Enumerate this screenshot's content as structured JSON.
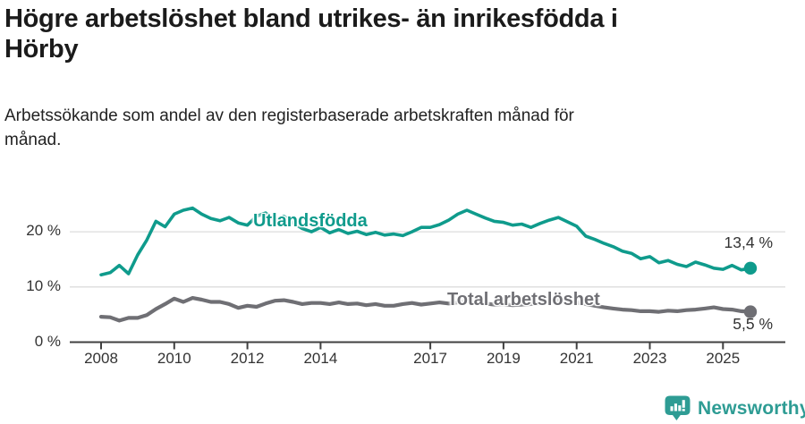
{
  "header": {
    "title": "Högre arbetslöshet bland utrikes- än inrikesfödda i\nHörby",
    "subtitle": "Arbetssökande som andel av den registerbaserade arbetskraften månad för\nmånad."
  },
  "chart_data": {
    "type": "line",
    "title": "Högre arbetslöshet bland utrikes- än inrikesfödda i Hörby",
    "subtitle": "Arbetssökande som andel av den registerbaserade arbetskraften månad för månad.",
    "x_unit": "decimal_year",
    "x": [
      2008.0,
      2008.25,
      2008.5,
      2008.75,
      2009.0,
      2009.25,
      2009.5,
      2009.75,
      2010.0,
      2010.25,
      2010.5,
      2010.75,
      2011.0,
      2011.25,
      2011.5,
      2011.75,
      2012.0,
      2012.25,
      2012.5,
      2012.75,
      2013.0,
      2013.25,
      2013.5,
      2013.75,
      2014.0,
      2014.25,
      2014.5,
      2014.75,
      2015.0,
      2015.25,
      2015.5,
      2015.75,
      2016.0,
      2016.25,
      2016.5,
      2016.75,
      2017.0,
      2017.25,
      2017.5,
      2017.75,
      2018.0,
      2018.25,
      2018.5,
      2018.75,
      2019.0,
      2019.25,
      2019.5,
      2019.75,
      2020.0,
      2020.25,
      2020.5,
      2020.75,
      2021.0,
      2021.25,
      2021.5,
      2021.75,
      2022.0,
      2022.25,
      2022.5,
      2022.75,
      2023.0,
      2023.25,
      2023.5,
      2023.75,
      2024.0,
      2024.25,
      2024.5,
      2024.75,
      2025.0,
      2025.25,
      2025.5,
      2025.75
    ],
    "series": [
      {
        "name": "Utlandsfödda",
        "color": "#0f9b8c",
        "end_label": "13,4 %",
        "end_value": 13.4,
        "values": [
          12.2,
          12.6,
          13.9,
          12.4,
          15.8,
          18.5,
          21.9,
          20.9,
          23.2,
          23.9,
          24.3,
          23.2,
          22.4,
          22.0,
          22.6,
          21.6,
          21.2,
          22.8,
          23.4,
          22.0,
          22.8,
          21.6,
          20.6,
          20.0,
          20.8,
          19.8,
          20.4,
          19.7,
          20.1,
          19.5,
          19.9,
          19.4,
          19.6,
          19.3,
          20.0,
          20.8,
          20.8,
          21.3,
          22.1,
          23.2,
          23.9,
          23.2,
          22.5,
          21.9,
          21.7,
          21.2,
          21.4,
          20.8,
          21.5,
          22.1,
          22.6,
          21.8,
          21.0,
          19.2,
          18.6,
          17.9,
          17.3,
          16.5,
          16.1,
          15.1,
          15.5,
          14.4,
          14.8,
          14.1,
          13.7,
          14.5,
          14.0,
          13.4,
          13.2,
          13.9,
          13.1,
          13.4
        ]
      },
      {
        "name": "Total arbetslöshet",
        "color": "#6f6f74",
        "end_label": "5,5 %",
        "end_value": 5.5,
        "values": [
          4.6,
          4.5,
          3.9,
          4.4,
          4.4,
          4.9,
          6.0,
          6.9,
          7.9,
          7.3,
          8.0,
          7.7,
          7.3,
          7.3,
          6.9,
          6.2,
          6.6,
          6.4,
          7.0,
          7.5,
          7.6,
          7.3,
          6.9,
          7.1,
          7.1,
          6.9,
          7.2,
          6.9,
          7.0,
          6.7,
          6.9,
          6.6,
          6.6,
          6.9,
          7.1,
          6.8,
          7.0,
          7.2,
          7.0,
          7.2,
          7.4,
          7.2,
          7.0,
          6.8,
          6.9,
          6.7,
          6.8,
          6.9,
          7.0,
          7.4,
          7.6,
          7.4,
          7.2,
          6.9,
          6.6,
          6.3,
          6.1,
          5.9,
          5.8,
          5.6,
          5.6,
          5.5,
          5.7,
          5.6,
          5.8,
          5.9,
          6.1,
          6.3,
          6.0,
          5.9,
          5.6,
          5.5
        ]
      }
    ],
    "x_ticks": [
      "2008",
      "2010",
      "2012",
      "2014",
      "2017",
      "2019",
      "2021",
      "2023",
      "2025"
    ],
    "y_ticks": [
      "0 %",
      "10 %",
      "20 %"
    ],
    "ylim": [
      0,
      26
    ],
    "grid": "horizontal",
    "legend": "inline-labels"
  },
  "colors": {
    "grid": "#dcdcdc",
    "axis": "#404040",
    "tick_text": "#333333"
  },
  "footer": {
    "brand": "Newsworthy",
    "brand_color": "#2e9c94",
    "logo_icon": "bar-chart-speech-bubble-icon"
  }
}
